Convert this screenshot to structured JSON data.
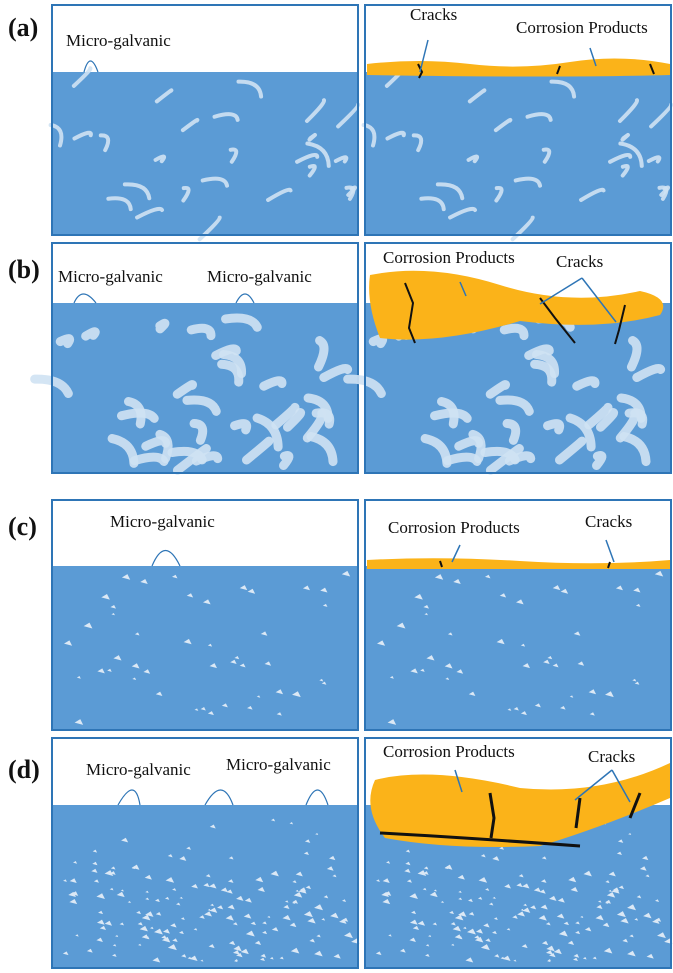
{
  "panels": [
    {
      "tag": "(a)",
      "left": {
        "labels": [
          "Micro-galvanic"
        ]
      },
      "right": {
        "labels": [
          "Cracks",
          "Corrosion Products"
        ]
      }
    },
    {
      "tag": "(b)",
      "left": {
        "labels": [
          "Micro-galvanic",
          "Micro-galvanic"
        ]
      },
      "right": {
        "labels": [
          "Corrosion Products",
          "Cracks"
        ]
      }
    },
    {
      "tag": "(c)",
      "left": {
        "labels": [
          "Micro-galvanic"
        ]
      },
      "right": {
        "labels": [
          "Corrosion Products",
          "Cracks"
        ]
      }
    },
    {
      "tag": "(d)",
      "left": {
        "labels": [
          "Micro-galvanic",
          "Micro-galvanic"
        ]
      },
      "right": {
        "labels": [
          "Corrosion Products",
          "Cracks"
        ]
      }
    }
  ]
}
